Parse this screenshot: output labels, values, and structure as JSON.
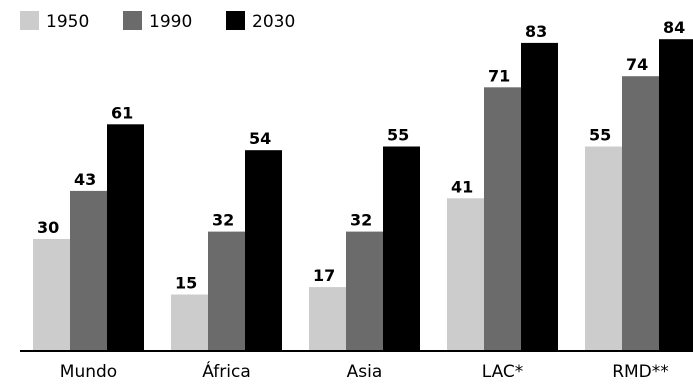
{
  "chart_data": {
    "type": "bar",
    "categories": [
      "Mundo",
      "África",
      "Asia",
      "LAC*",
      "RMD**"
    ],
    "series": [
      {
        "name": "1950",
        "color": "#cccccc",
        "values": [
          30,
          15,
          17,
          41,
          55
        ]
      },
      {
        "name": "1990",
        "color": "#6b6b6b",
        "values": [
          43,
          32,
          32,
          71,
          74
        ]
      },
      {
        "name": "2030",
        "color": "#000000",
        "values": [
          61,
          54,
          55,
          83,
          84
        ]
      }
    ],
    "title": "",
    "xlabel": "",
    "ylabel": "",
    "ylim": [
      0,
      84
    ],
    "grid": false,
    "legend": "top-left",
    "data_labels": true
  }
}
